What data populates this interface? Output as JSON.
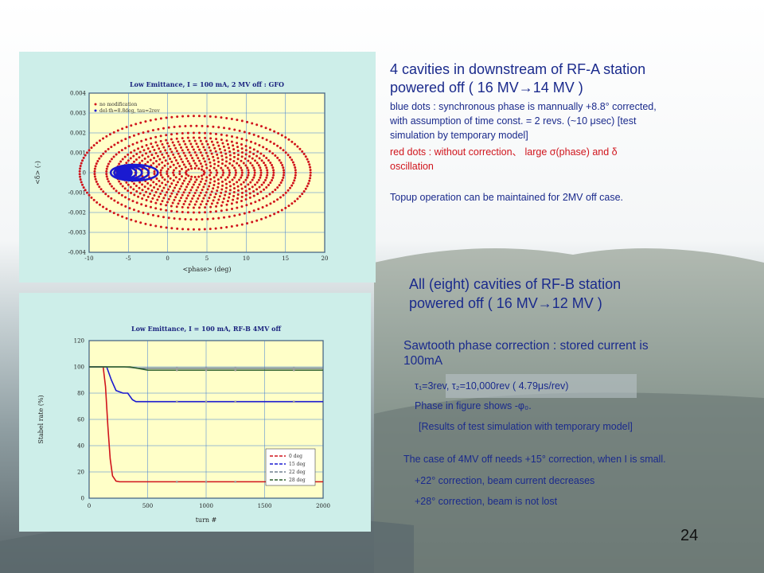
{
  "page_number": "24",
  "colors": {
    "red": "#d0141c",
    "blue": "#1a1ad0",
    "green": "#2a5d2a",
    "text_blue": "#1a2a8c",
    "panel": "#cdeee9",
    "plot_bg": "#ffffc8"
  },
  "section_a": {
    "heading_line1": "4 cavities in downstream of RF-A station",
    "heading_line2": "powered off ( 16 MV→14 MV )",
    "blue_dots_1": "blue dots : synchronous phase is mannually +8.8° corrected,",
    "blue_dots_2": "with assumption of time const. = 2 revs. (~10 μsec)    [test",
    "blue_dots_3": "simulation by temporary model]",
    "red_dots_1": "red dots : without correction、 large σ(phase)  and δ",
    "red_dots_2": "oscillation",
    "topup": "Topup operation can be maintained for 2MV off case."
  },
  "section_b": {
    "heading_line1": "All (eight) cavities of RF-B station",
    "heading_line2": "powered off ( 16 MV→12 MV )",
    "sawtooth_1": "Sawtooth phase correction : stored current is",
    "sawtooth_2": "100mA",
    "tau": "τ₁=3rev, τ₂=10,000rev    ( 4.79μs/rev)",
    "phase_shows": "Phase in figure shows -φ₀.",
    "results": "[Results of test simulation with temporary model]",
    "case_4mv": "The case of 4MV off needs +15° correction, when I is small.",
    "c22": "+22° correction, beam current decreases",
    "c28": "+28° correction, beam is not lost"
  },
  "chart_data": [
    {
      "type": "scatter",
      "title": "Low Emittance, I = 100 mA, 2 MV off : GFO",
      "xlabel": "<phase> (deg)",
      "ylabel": "<δ> (-)",
      "xlim": [
        -10,
        20
      ],
      "ylim": [
        -0.004,
        0.004
      ],
      "x_ticks": [
        -10,
        -5,
        0,
        5,
        10,
        15,
        20
      ],
      "y_ticks": [
        0.004,
        0.003,
        0.002,
        0.001,
        0,
        -0.001,
        -0.002,
        -0.003,
        -0.004
      ],
      "legend_position": "top-left",
      "grid": true,
      "series": [
        {
          "name": "no modification",
          "color": "#d0141c",
          "center": [
            3.5,
            0
          ],
          "x_amplitudes": [
            1.2,
            2.0,
            2.8,
            3.6,
            4.4,
            5.2,
            6.0,
            6.8,
            7.6,
            8.4,
            9.2,
            10.0,
            11.3,
            12.8,
            14.7
          ],
          "y_amplitudes": [
            0.00022,
            0.00035,
            0.00047,
            0.0006,
            0.00074,
            0.00088,
            0.00102,
            0.00116,
            0.0013,
            0.00145,
            0.0016,
            0.00176,
            0.002,
            0.00235,
            0.00285
          ]
        },
        {
          "name": "del-th=8.8deg, tau=2rev",
          "color": "#1a1ad0",
          "center": [
            -5.6,
            0
          ],
          "x_amplitudes": [
            0.7,
            1.1,
            1.6,
            2.2,
            3.0
          ],
          "y_amplitudes": [
            0.00022,
            0.00026,
            0.0003,
            0.00035,
            0.0004
          ]
        }
      ]
    },
    {
      "type": "line",
      "title": "Low Emittance, I = 100 mA, RF-B 4MV off",
      "xlabel": "turn #",
      "ylabel": "Stabel rate (%)",
      "xlim": [
        0,
        2000
      ],
      "ylim": [
        0,
        120
      ],
      "x_ticks": [
        0,
        500,
        1000,
        1500,
        2000
      ],
      "y_ticks": [
        0,
        20,
        40,
        60,
        80,
        100,
        120
      ],
      "legend_position": "bottom-right",
      "grid": true,
      "series": [
        {
          "name": "0 deg",
          "color": "#d0141c",
          "x": [
            0,
            120,
            140,
            160,
            180,
            200,
            230,
            260,
            2000
          ],
          "y": [
            100,
            100,
            85,
            55,
            30,
            17,
            13,
            12.5,
            12.5
          ]
        },
        {
          "name": "15 deg",
          "color": "#1a1ad0",
          "x": [
            0,
            150,
            190,
            230,
            290,
            330,
            370,
            400,
            2000
          ],
          "y": [
            100,
            100,
            90,
            82,
            80,
            80,
            75,
            73.5,
            73.5
          ]
        },
        {
          "name": "22 deg",
          "color": "#708090",
          "x": [
            0,
            300,
            420,
            2000
          ],
          "y": [
            100,
            100,
            99,
            99
          ]
        },
        {
          "name": "28 deg",
          "color": "#2a5d2a",
          "x": [
            0,
            350,
            500,
            2000
          ],
          "y": [
            100,
            100,
            97.5,
            97.5
          ]
        }
      ]
    }
  ]
}
